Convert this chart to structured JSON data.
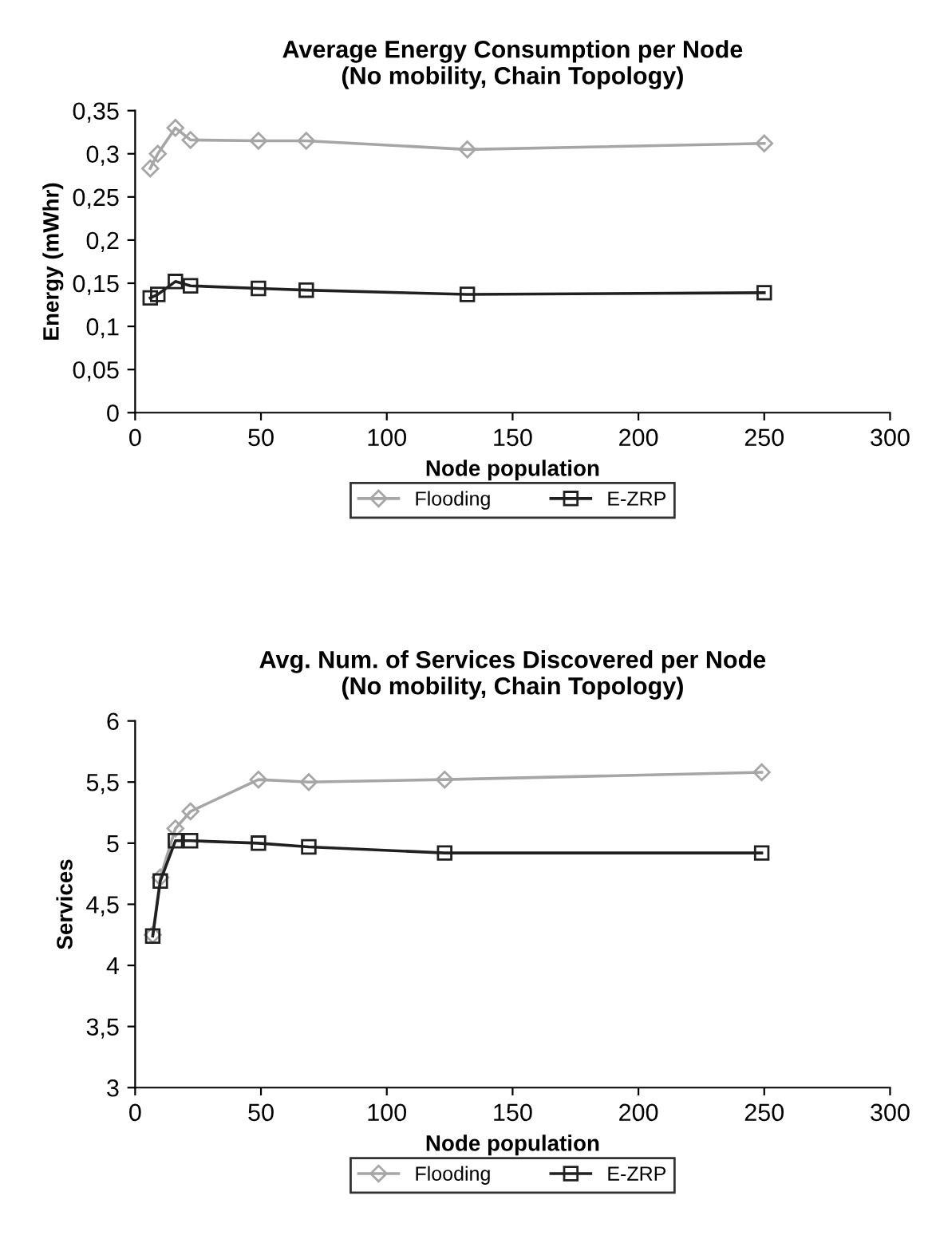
{
  "chart_data": [
    {
      "type": "line",
      "title": "Average Energy Consumption per Node\n(No mobility, Chain Topology)",
      "xlabel": "Node population",
      "ylabel": "Energy (mWhr)",
      "x": [
        6,
        9,
        16,
        22,
        49,
        68,
        132,
        250
      ],
      "series": [
        {
          "name": "Flooding",
          "color": "#a6a6a6",
          "marker": "diamond",
          "values": [
            0.283,
            0.3,
            0.33,
            0.316,
            0.315,
            0.315,
            0.305,
            0.312
          ]
        },
        {
          "name": "E-ZRP",
          "color": "#202020",
          "marker": "square",
          "values": [
            0.133,
            0.137,
            0.152,
            0.147,
            0.144,
            0.142,
            0.137,
            0.139
          ]
        }
      ],
      "xlim": [
        0,
        300
      ],
      "xticks": [
        0,
        50,
        100,
        150,
        200,
        250,
        300
      ],
      "ylim": [
        0,
        0.35
      ],
      "yticks": [
        0,
        {
          "value": 0.05,
          "label": "0,05"
        },
        {
          "value": 0.1,
          "label": "0,1"
        },
        {
          "value": 0.15,
          "label": "0,15"
        },
        {
          "value": 0.2,
          "label": "0,2"
        },
        {
          "value": 0.25,
          "label": "0,25"
        },
        {
          "value": 0.3,
          "label": "0,3"
        },
        {
          "value": 0.35,
          "label": "0,35"
        }
      ],
      "grid": false,
      "legend": "bottom"
    },
    {
      "type": "line",
      "title": "Avg. Num. of Services Discovered per Node\n(No mobility, Chain Topology)",
      "xlabel": "Node population",
      "ylabel": "Services",
      "x": [
        7,
        10,
        16,
        22,
        49,
        69,
        123,
        249
      ],
      "series": [
        {
          "name": "Flooding",
          "color": "#a6a6a6",
          "marker": "diamond",
          "values": [
            4.25,
            4.72,
            5.12,
            5.26,
            5.52,
            5.5,
            5.52,
            5.58
          ]
        },
        {
          "name": "E-ZRP",
          "color": "#202020",
          "marker": "square",
          "values": [
            4.24,
            4.69,
            5.02,
            5.02,
            5.0,
            4.97,
            4.92,
            4.92
          ]
        }
      ],
      "xlim": [
        0,
        300
      ],
      "xticks": [
        0,
        50,
        100,
        150,
        200,
        250,
        300
      ],
      "ylim": [
        3,
        6
      ],
      "yticks": [
        3,
        {
          "value": 3.5,
          "label": "3,5"
        },
        4,
        {
          "value": 4.5,
          "label": "4,5"
        },
        5,
        {
          "value": 5.5,
          "label": "5,5"
        },
        6
      ],
      "grid": false,
      "legend": "bottom"
    }
  ]
}
